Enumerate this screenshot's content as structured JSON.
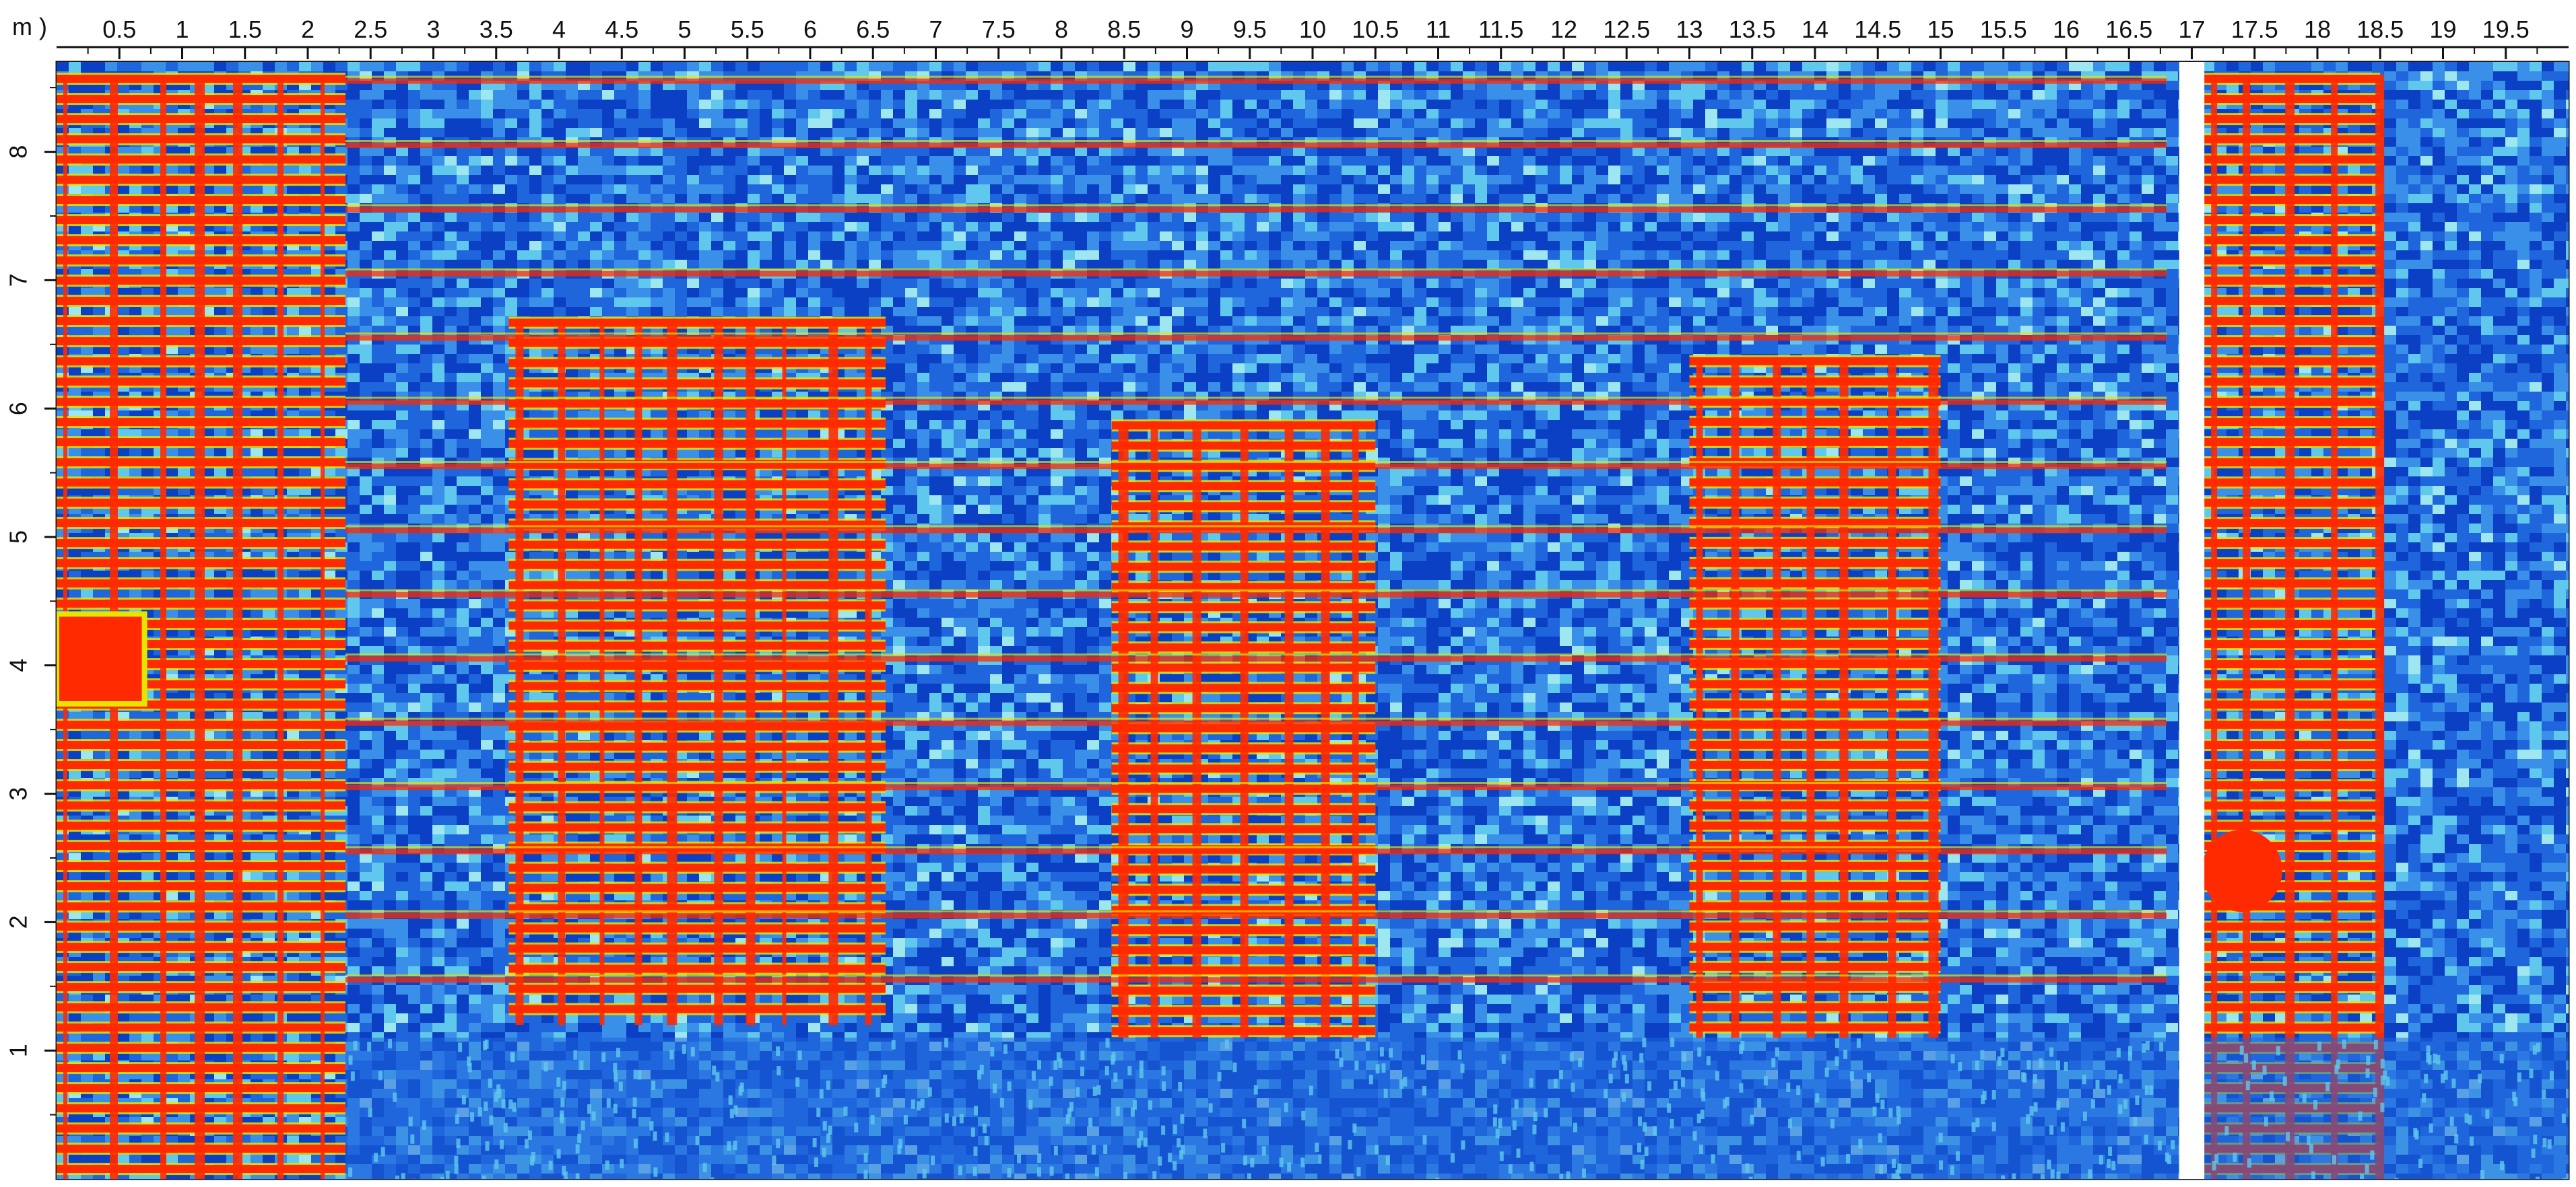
{
  "axes": {
    "unit_label": "m",
    "x_ticks": [
      "0.5",
      "1",
      "1.5",
      "2",
      "2.5",
      "3",
      "3.5",
      "4",
      "4.5",
      "5",
      "5.5",
      "6",
      "6.5",
      "7",
      "7.5",
      "8",
      "8.5",
      "9",
      "9.5",
      "10",
      "10.5",
      "11",
      "11.5",
      "12",
      "12.5",
      "13",
      "13.5",
      "14",
      "14.5",
      "15",
      "15.5",
      "16",
      "16.5",
      "17",
      "17.5",
      "18",
      "18.5",
      "19",
      "19.5"
    ],
    "y_ticks": [
      "1",
      "2",
      "3",
      "4",
      "5",
      "6",
      "7",
      "8"
    ]
  },
  "chart_data": {
    "type": "heatmap",
    "title": "",
    "xlabel": "m",
    "ylabel": "",
    "xlim": [
      0,
      20
    ],
    "ylim": [
      0,
      8.7
    ],
    "x_tick_values": [
      0.5,
      1,
      1.5,
      2,
      2.5,
      3,
      3.5,
      4,
      4.5,
      5,
      5.5,
      6,
      6.5,
      7,
      7.5,
      8,
      8.5,
      9,
      9.5,
      10,
      10.5,
      11,
      11.5,
      12,
      12.5,
      13,
      13.5,
      14,
      14.5,
      15,
      15.5,
      16,
      16.5,
      17,
      17.5,
      18,
      18.5,
      19,
      19.5
    ],
    "y_tick_values": [
      1,
      2,
      3,
      4,
      5,
      6,
      7,
      8
    ],
    "no_data_gap_x": [
      16.9,
      17.1
    ],
    "colorscale": [
      "#0b3fc4",
      "#1f66dd",
      "#3a8fe8",
      "#5fc8ec",
      "#9fe7f0",
      "#2ecc40",
      "#e7e400",
      "#ff8a00",
      "#ff2a00"
    ],
    "grid": false,
    "features": [
      {
        "type": "circle",
        "x": 17.4,
        "y": 2.4,
        "r": 0.32
      },
      {
        "type": "rect",
        "x": [
          0,
          0.7
        ],
        "y": [
          3.7,
          4.4
        ]
      }
    ],
    "regions": [
      {
        "x": [
          0,
          2.3
        ],
        "y": [
          0,
          8.6
        ],
        "intensity": "high"
      },
      {
        "x": [
          3.6,
          6.6
        ],
        "y": [
          1.2,
          6.7
        ],
        "intensity": "high"
      },
      {
        "x": [
          8.4,
          10.5
        ],
        "y": [
          1.1,
          5.9
        ],
        "intensity": "high"
      },
      {
        "x": [
          13.0,
          15.0
        ],
        "y": [
          1.1,
          6.4
        ],
        "intensity": "high"
      },
      {
        "x": [
          17.1,
          18.5
        ],
        "y": [
          0,
          8.6
        ],
        "intensity": "high"
      },
      {
        "x": [
          2.3,
          20
        ],
        "y": [
          0,
          1.1
        ],
        "intensity": "low"
      }
    ]
  },
  "colors": {
    "background": "#ffffff",
    "gap": "#ffffff",
    "high": "#ff2a00",
    "mid": "#e7e400",
    "low": "#0b3fc4"
  }
}
